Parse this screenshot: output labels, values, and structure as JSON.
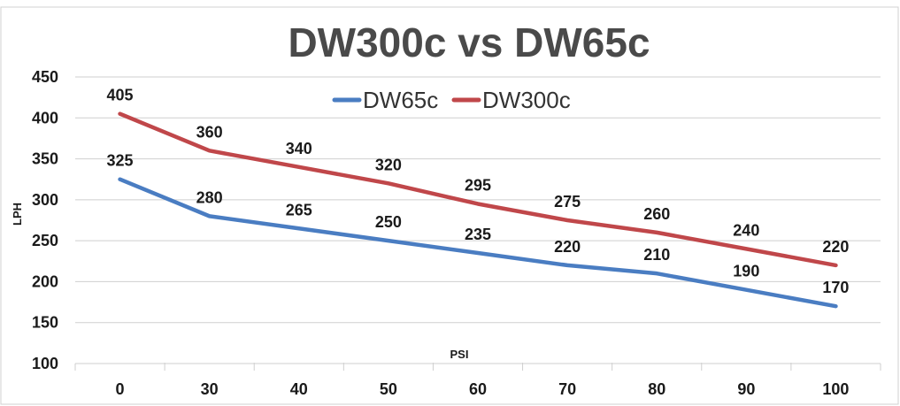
{
  "chart_data": {
    "type": "line",
    "title": "DW300c vs DW65c",
    "xlabel": "PSI",
    "ylabel": "LPH",
    "categories": [
      "0",
      "30",
      "40",
      "50",
      "60",
      "70",
      "80",
      "90",
      "100"
    ],
    "ylim": [
      100,
      450
    ],
    "yticks": [
      100,
      150,
      200,
      250,
      300,
      350,
      400,
      450
    ],
    "grid": true,
    "legend_position": "top-center",
    "series": [
      {
        "name": "DW65c",
        "color": "#4a7dc2",
        "values": [
          325,
          280,
          265,
          250,
          235,
          220,
          210,
          190,
          170
        ]
      },
      {
        "name": "DW300c",
        "color": "#c0474a",
        "values": [
          405,
          360,
          340,
          320,
          295,
          275,
          260,
          240,
          220
        ]
      }
    ]
  }
}
